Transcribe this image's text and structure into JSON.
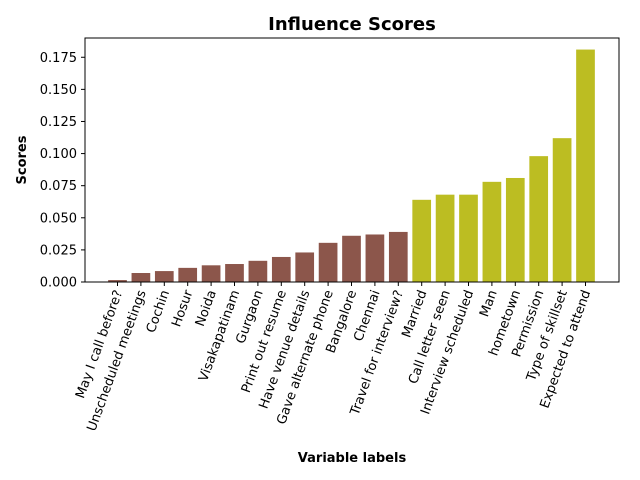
{
  "chart_data": {
    "type": "bar",
    "title": "Influence Scores",
    "xlabel": "Variable labels",
    "ylabel": "Scores",
    "ylim": [
      0,
      0.19
    ],
    "yticks": [
      0.0,
      0.025,
      0.05,
      0.075,
      0.1,
      0.125,
      0.15,
      0.175
    ],
    "ytick_labels": [
      "0.000",
      "0.025",
      "0.050",
      "0.075",
      "0.100",
      "0.125",
      "0.150",
      "0.175"
    ],
    "grid": false,
    "legend": "none",
    "colors": {
      "low": "#8c564b",
      "high": "#bcbd22"
    },
    "categories": [
      "May I call before?",
      "Unscheduled meetings",
      "Cochin",
      "Hosur",
      "Noida",
      "Visakapatinam",
      "Gurgaon",
      "Print out resume",
      "Have venue details",
      "Gave alternate phone",
      "Bangalore",
      "Chennai",
      "Travel for interview?",
      "Married",
      "Call letter seen",
      "Interview scheduled",
      "Man",
      "hometown",
      "Permission",
      "Type of skillset",
      "Expected to attend"
    ],
    "values": [
      0.0015,
      0.007,
      0.0085,
      0.011,
      0.013,
      0.014,
      0.0165,
      0.0195,
      0.023,
      0.0305,
      0.036,
      0.037,
      0.039,
      0.064,
      0.068,
      0.068,
      0.078,
      0.081,
      0.098,
      0.112,
      0.181
    ],
    "bar_color_groups": [
      "low",
      "low",
      "low",
      "low",
      "low",
      "low",
      "low",
      "low",
      "low",
      "low",
      "low",
      "low",
      "low",
      "high",
      "high",
      "high",
      "high",
      "high",
      "high",
      "high",
      "high"
    ]
  }
}
